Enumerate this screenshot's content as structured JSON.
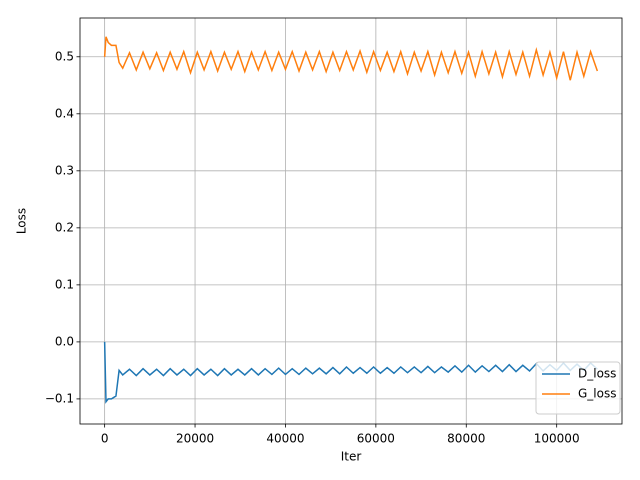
{
  "chart_data": {
    "type": "line",
    "x_label": "Iter",
    "y_label": "Loss",
    "x": [
      0,
      300,
      800,
      1500,
      2500,
      3200,
      4000,
      5500,
      7000,
      8500,
      10000,
      11500,
      13000,
      14500,
      16000,
      17500,
      19000,
      20500,
      22000,
      23500,
      25000,
      26500,
      28000,
      29500,
      31000,
      32500,
      34000,
      35500,
      37000,
      38500,
      40000,
      41500,
      43000,
      44500,
      46000,
      47500,
      49000,
      50500,
      52000,
      53500,
      55000,
      56500,
      58000,
      59500,
      61000,
      62500,
      64000,
      65500,
      67000,
      68500,
      70000,
      71500,
      73000,
      74500,
      76000,
      77500,
      79000,
      80500,
      82000,
      83500,
      85000,
      86500,
      88000,
      89500,
      91000,
      92500,
      94000,
      95500,
      97000,
      98500,
      100000,
      101500,
      103000,
      104500,
      106000,
      107500,
      109000
    ],
    "series": [
      {
        "name": "D_loss",
        "color": "#1f77b4",
        "values": [
          0,
          -0.105,
          -0.1,
          -0.1,
          -0.095,
          -0.05,
          -0.058,
          -0.048,
          -0.059,
          -0.047,
          -0.058,
          -0.048,
          -0.059,
          -0.047,
          -0.058,
          -0.048,
          -0.059,
          -0.047,
          -0.058,
          -0.048,
          -0.059,
          -0.047,
          -0.058,
          -0.048,
          -0.058,
          -0.047,
          -0.058,
          -0.047,
          -0.057,
          -0.046,
          -0.057,
          -0.047,
          -0.057,
          -0.046,
          -0.056,
          -0.046,
          -0.056,
          -0.045,
          -0.056,
          -0.044,
          -0.055,
          -0.045,
          -0.055,
          -0.044,
          -0.055,
          -0.045,
          -0.055,
          -0.044,
          -0.054,
          -0.044,
          -0.054,
          -0.043,
          -0.054,
          -0.044,
          -0.053,
          -0.042,
          -0.053,
          -0.041,
          -0.053,
          -0.042,
          -0.052,
          -0.041,
          -0.052,
          -0.04,
          -0.052,
          -0.041,
          -0.051,
          -0.038,
          -0.051,
          -0.04,
          -0.05,
          -0.037,
          -0.05,
          -0.039,
          -0.05,
          -0.037,
          -0.048
        ]
      },
      {
        "name": "G_loss",
        "color": "#ff7f0e",
        "values": [
          0.5,
          0.535,
          0.525,
          0.52,
          0.52,
          0.49,
          0.48,
          0.507,
          0.477,
          0.508,
          0.479,
          0.507,
          0.476,
          0.508,
          0.478,
          0.509,
          0.472,
          0.508,
          0.477,
          0.509,
          0.475,
          0.508,
          0.478,
          0.509,
          0.474,
          0.508,
          0.477,
          0.509,
          0.476,
          0.508,
          0.478,
          0.509,
          0.475,
          0.508,
          0.477,
          0.509,
          0.474,
          0.508,
          0.476,
          0.509,
          0.477,
          0.51,
          0.473,
          0.509,
          0.476,
          0.508,
          0.474,
          0.509,
          0.47,
          0.508,
          0.475,
          0.509,
          0.468,
          0.508,
          0.472,
          0.509,
          0.471,
          0.508,
          0.466,
          0.509,
          0.47,
          0.508,
          0.465,
          0.509,
          0.469,
          0.508,
          0.466,
          0.512,
          0.468,
          0.508,
          0.463,
          0.509,
          0.459,
          0.508,
          0.466,
          0.509,
          0.475
        ]
      }
    ],
    "xlim": [
      -5450,
      114450
    ],
    "ylim": [
      -0.144,
      0.568
    ],
    "xticks": [
      0,
      20000,
      40000,
      60000,
      80000,
      100000
    ],
    "yticks": [
      {
        "value": -0.1,
        "label": "−0.1"
      },
      {
        "value": 0,
        "label": "0.0"
      },
      0.1,
      0.2,
      0.3,
      0.4,
      0.5
    ],
    "grid": true,
    "legend": "lower right"
  }
}
